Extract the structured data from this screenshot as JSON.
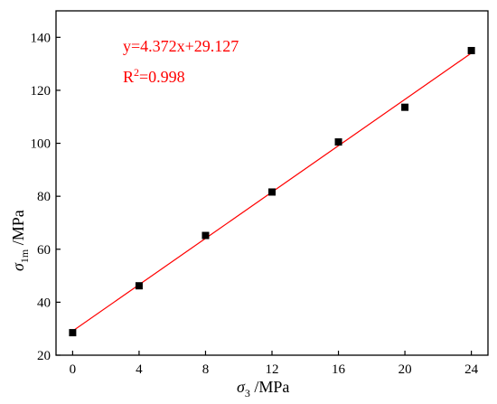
{
  "chart_data": {
    "type": "scatter",
    "title": "",
    "xlabel": {
      "symbol": "σ",
      "sub": "3",
      "unit": " /MPa"
    },
    "ylabel": {
      "symbol": "σ",
      "sub": "1m",
      "unit": " /MPa"
    },
    "xlim": [
      -1,
      25
    ],
    "ylim": [
      20,
      150
    ],
    "xticks": [
      0,
      4,
      8,
      12,
      16,
      20,
      24
    ],
    "yticks": [
      20,
      40,
      60,
      80,
      100,
      120,
      140
    ],
    "x_tick_labels": [
      "0",
      "4",
      "8",
      "12",
      "16",
      "20",
      "24"
    ],
    "y_tick_labels": [
      "20",
      "40",
      "60",
      "80",
      "100",
      "120",
      "140"
    ],
    "series": [
      {
        "marker": "square",
        "color": "#000000",
        "x": [
          0,
          4,
          8,
          12,
          16,
          20,
          24
        ],
        "y": [
          28.5,
          46.2,
          65.2,
          81.6,
          100.5,
          113.6,
          135.0
        ]
      }
    ],
    "fit": {
      "color": "#ff0000",
      "slope": 4.372,
      "intercept": 29.127,
      "x_range": [
        0,
        24
      ],
      "equation": "y=4.372x+29.127",
      "r2_prefix": "R",
      "r2_sup": "2",
      "r2_value": "=0.998"
    },
    "grid": false
  }
}
